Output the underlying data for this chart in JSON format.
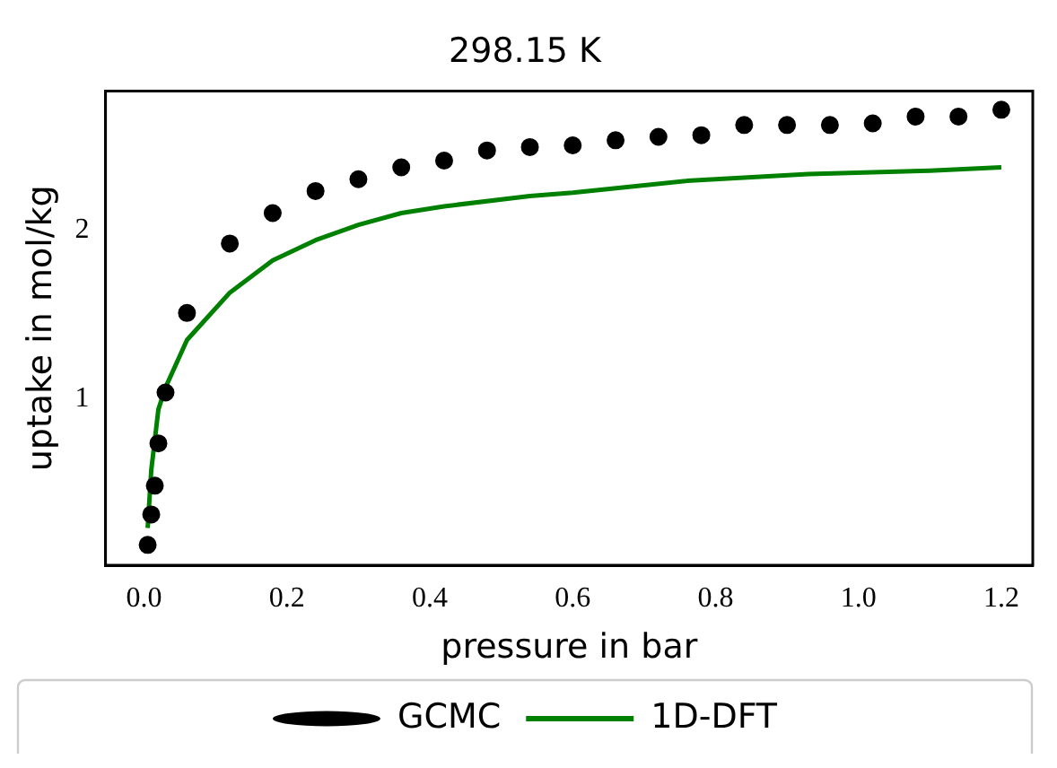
{
  "chart_data": {
    "type": "scatter",
    "title": "298.15 K",
    "xlabel": "pressure in bar",
    "ylabel": "uptake in mol/kg",
    "xlim": [
      -0.054,
      1.244
    ],
    "ylim": [
      0.02,
      2.82
    ],
    "xticks": [
      {
        "value": 0,
        "label": "0.0"
      },
      {
        "value": 0.2,
        "label": "0.2"
      },
      {
        "value": 0.4,
        "label": "0.4"
      },
      {
        "value": 0.6,
        "label": "0.6"
      },
      {
        "value": 0.8,
        "label": "0.8"
      },
      {
        "value": 1,
        "label": "1.0"
      },
      {
        "value": 1.2,
        "label": "1.2"
      }
    ],
    "yticks": [
      1,
      2
    ],
    "grid": false,
    "legend": "bottom",
    "series": [
      {
        "name": "GCMC",
        "marker": "circle",
        "color": "#000000",
        "x": [
          0.005,
          0.01,
          0.015,
          0.02,
          0.03,
          0.06,
          0.12,
          0.18,
          0.24,
          0.3,
          0.36,
          0.42,
          0.48,
          0.54,
          0.6,
          0.66,
          0.72,
          0.78,
          0.84,
          0.9,
          0.96,
          1.02,
          1.08,
          1.14,
          1.2
        ],
        "values": [
          0.14,
          0.32,
          0.49,
          0.74,
          1.04,
          1.51,
          1.92,
          2.1,
          2.23,
          2.3,
          2.37,
          2.41,
          2.47,
          2.49,
          2.5,
          2.53,
          2.55,
          2.56,
          2.62,
          2.62,
          2.62,
          2.63,
          2.67,
          2.67,
          2.71
        ]
      },
      {
        "name": "1D-DFT",
        "type": "line",
        "color": "#008000",
        "x": [
          0.005,
          0.01,
          0.02,
          0.03,
          0.06,
          0.12,
          0.18,
          0.24,
          0.3,
          0.36,
          0.42,
          0.54,
          0.6,
          0.76,
          0.93,
          1.1,
          1.2
        ],
        "values": [
          0.24,
          0.58,
          0.94,
          1.07,
          1.35,
          1.63,
          1.82,
          1.94,
          2.03,
          2.1,
          2.14,
          2.2,
          2.22,
          2.29,
          2.33,
          2.35,
          2.37
        ]
      }
    ]
  }
}
